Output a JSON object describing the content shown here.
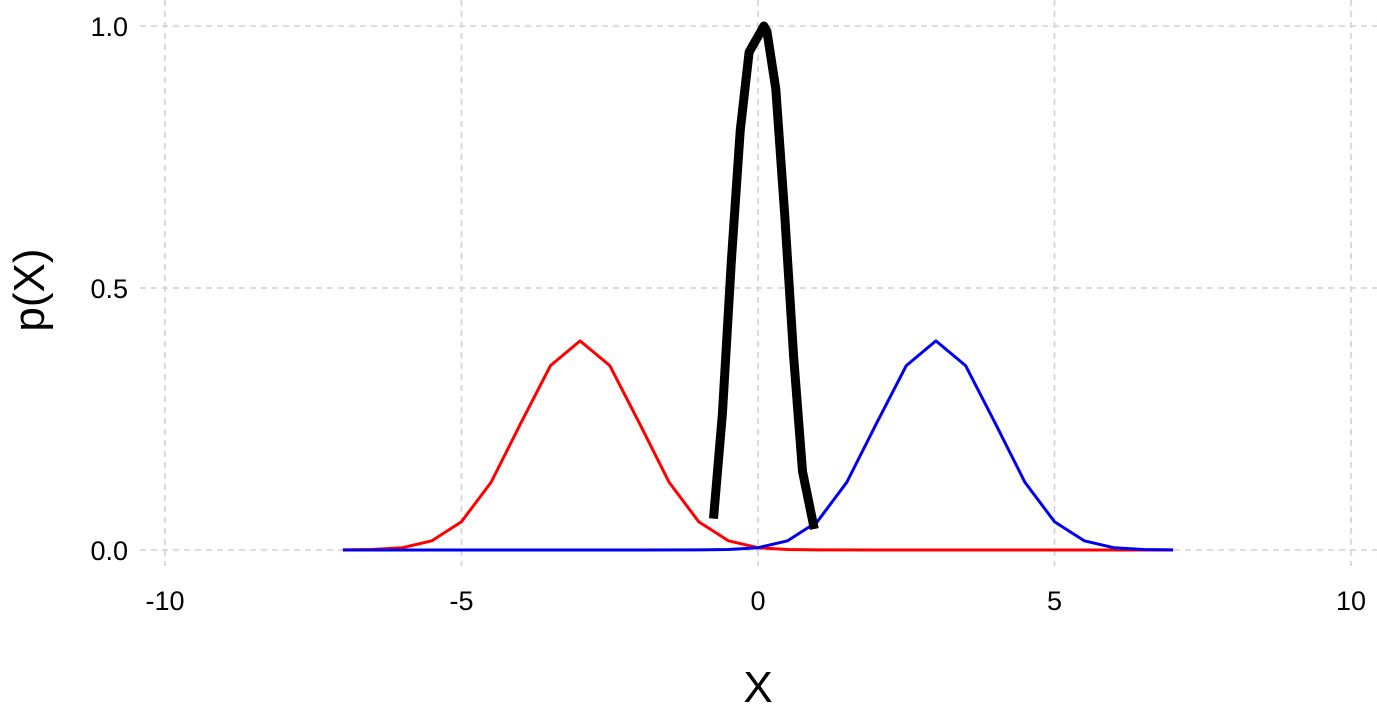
{
  "chart_data": {
    "type": "line",
    "title": "",
    "xlabel": "X",
    "ylabel": "p(X)",
    "xlim": [
      -10,
      10
    ],
    "ylim": [
      0,
      1
    ],
    "x_ticks": [
      -10,
      -5,
      0,
      5,
      10
    ],
    "x_tick_labels": [
      "-10",
      "-5",
      "0",
      "5",
      "10"
    ],
    "y_ticks": [
      0,
      0.5,
      1
    ],
    "y_tick_labels": [
      "0.0",
      "0.5",
      "1.0"
    ],
    "grid": true,
    "legend": "none",
    "series": [
      {
        "color": "#ff0000",
        "style": "thin",
        "x": [
          -7,
          -6.5,
          -6,
          -5.5,
          -5,
          -4.5,
          -4,
          -3.5,
          -3,
          -2.5,
          -2,
          -1.5,
          -1,
          -0.5,
          0,
          0.5,
          1,
          2,
          3,
          4,
          5,
          6,
          7
        ],
        "y": [
          0.0001,
          0.0009,
          0.0044,
          0.0175,
          0.054,
          0.1295,
          0.242,
          0.352,
          0.399,
          0.352,
          0.242,
          0.1295,
          0.054,
          0.0175,
          0.0044,
          0.0009,
          0.0001,
          0,
          0,
          0,
          0,
          0,
          0
        ]
      },
      {
        "color": "#0000ee",
        "style": "thin",
        "x": [
          -7,
          -6,
          -5,
          -4,
          -3,
          -2,
          -1,
          -0.5,
          0,
          0.5,
          1,
          1.5,
          2,
          2.5,
          3,
          3.5,
          4,
          4.5,
          5,
          5.5,
          6,
          6.5,
          7
        ],
        "y": [
          0,
          0,
          0,
          0,
          0,
          0,
          0.0001,
          0.0009,
          0.0044,
          0.0175,
          0.054,
          0.1295,
          0.242,
          0.352,
          0.399,
          0.352,
          0.242,
          0.1295,
          0.054,
          0.0175,
          0.0044,
          0.0009,
          0.0001
        ]
      },
      {
        "color": "#000000",
        "style": "thick",
        "x": [
          -0.75,
          -0.6,
          -0.45,
          -0.3,
          -0.15,
          -0.05,
          0.05,
          0.1,
          0.15,
          0.3,
          0.45,
          0.6,
          0.75,
          0.95
        ],
        "y": [
          0.06,
          0.26,
          0.55,
          0.8,
          0.95,
          0.97,
          0.99,
          1.0,
          0.99,
          0.88,
          0.64,
          0.37,
          0.15,
          0.04
        ]
      }
    ]
  }
}
